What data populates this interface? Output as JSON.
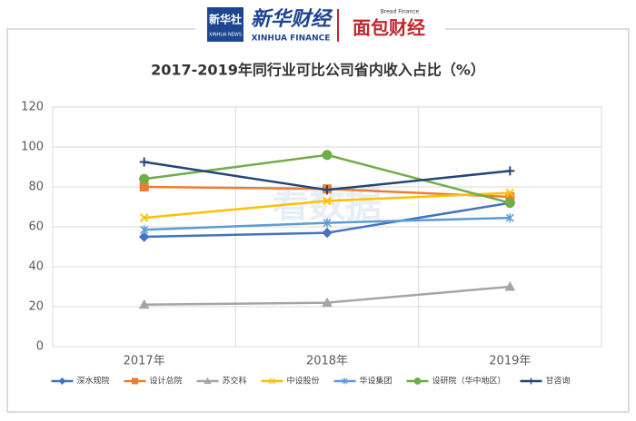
{
  "header": {
    "xinhua_logo": "新华社",
    "xinhua_logo_sub": "XINHUA NEWS",
    "brand": "新华财经",
    "brand_en": "XINHUA FINANCE",
    "partner_en": "Bread Finance",
    "partner": "面包财经",
    "watermark": "看数据"
  },
  "chart_data": {
    "type": "line",
    "title": "2017-2019年同行业可比公司省内收入占比（%）",
    "categories": [
      "2017年",
      "2018年",
      "2019年"
    ],
    "series": [
      {
        "name": "深水规院",
        "color": "#4472c4",
        "marker": "diamond",
        "values": [
          55,
          57,
          72
        ]
      },
      {
        "name": "设计总院",
        "color": "#ed7d31",
        "marker": "square",
        "values": [
          80,
          79,
          75
        ]
      },
      {
        "name": "苏交科",
        "color": "#a5a5a5",
        "marker": "triangle",
        "values": [
          21,
          22,
          30
        ]
      },
      {
        "name": "中设股份",
        "color": "#ffc000",
        "marker": "x",
        "values": [
          64.5,
          73,
          77
        ]
      },
      {
        "name": "华设集团",
        "color": "#5b9bd5",
        "marker": "star",
        "values": [
          58.5,
          62,
          64.5
        ]
      },
      {
        "name": "设研院（华中地区）",
        "color": "#70ad47",
        "marker": "circle",
        "values": [
          84,
          96,
          72
        ]
      },
      {
        "name": "甘咨询",
        "color": "#264478",
        "marker": "plus",
        "values": [
          92.5,
          78.5,
          88
        ]
      }
    ],
    "ylim": [
      0,
      120
    ],
    "yticks": [
      0,
      20,
      40,
      60,
      80,
      100,
      120
    ],
    "grid": true,
    "legend": "bottom"
  }
}
